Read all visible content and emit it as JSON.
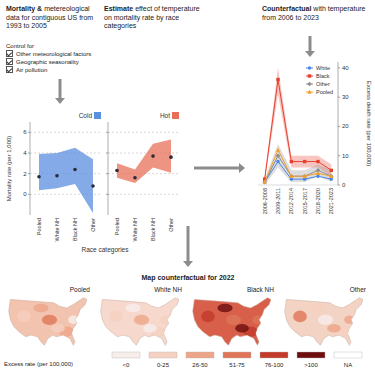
{
  "header": [
    {
      "bold": "Mortality &",
      "text": "metereological data for contiguous US from 1993 to 2005"
    },
    {
      "bold": "Estimate",
      "text": "effect of temperature on mortality rate by race categories"
    },
    {
      "bold": "Counterfactual",
      "text": "with temperature from 2006 to 2023"
    }
  ],
  "controls": {
    "title": "Control for",
    "items": [
      "Other meteorological factors",
      "Geographic seasonality",
      "Air pollution"
    ]
  },
  "chart_data": [
    {
      "type": "scatter",
      "title": "Cold",
      "color": "#5b8fe0",
      "marker": "circle",
      "categories": [
        "Pooled",
        "White NH",
        "Black NH",
        "Other"
      ],
      "values": [
        1.7,
        1.8,
        2.4,
        0.8
      ],
      "lower": [
        0.4,
        0.6,
        1.0,
        -1.8
      ],
      "upper": [
        3.9,
        4.0,
        4.5,
        3.4
      ],
      "ylim": [
        -2,
        7
      ],
      "yticks": [
        0,
        2,
        4,
        6
      ],
      "grid": true,
      "ylabel": "Mortality rate (per 1,000)",
      "xlabel": "Race categories"
    },
    {
      "type": "scatter",
      "title": "Hot",
      "color": "#e8705a",
      "marker": "circle",
      "categories": [
        "Pooled",
        "White NH",
        "Black NH",
        "Other"
      ],
      "values": [
        2.3,
        1.6,
        3.7,
        3.6
      ],
      "lower": [
        1.6,
        1.1,
        2.6,
        2.1
      ],
      "upper": [
        3.0,
        2.4,
        4.9,
        5.3
      ],
      "ylim": [
        -2,
        7
      ],
      "yticks": [
        0,
        2,
        4,
        6
      ],
      "grid": true,
      "tick_labels": "x"
    },
    {
      "type": "line",
      "categories": [
        "2006-2008",
        "2009-2011",
        "2012-2014",
        "2015-2017",
        "2018-2020",
        "2021-2023"
      ],
      "ylabel": "Excess death rate (per 100,000)",
      "ylim": [
        0,
        42
      ],
      "yticks": [
        0,
        10,
        20,
        30,
        40
      ],
      "legend": "top-right",
      "series": [
        {
          "name": "White",
          "color": "#4a86e8",
          "marker": "circle",
          "values": [
            1,
            8,
            2,
            2,
            3,
            2
          ]
        },
        {
          "name": "Black",
          "color": "#e8402f",
          "marker": "square",
          "values": [
            2,
            36,
            8,
            8,
            8,
            5
          ],
          "lower": [
            1,
            31,
            6,
            6,
            6,
            3
          ],
          "upper": [
            3,
            40,
            10,
            10,
            10,
            7
          ]
        },
        {
          "name": "Other",
          "color": "#8e8e8e",
          "marker": "diamond",
          "values": [
            1,
            10,
            3,
            3,
            5,
            3
          ],
          "lower": [
            0,
            6,
            1,
            1,
            3,
            1
          ],
          "upper": [
            2,
            14,
            5,
            5,
            7,
            5
          ]
        },
        {
          "name": "Pooled",
          "color": "#f0a030",
          "marker": "triangle",
          "values": [
            1,
            12,
            3,
            3,
            4,
            3
          ]
        }
      ]
    }
  ],
  "maps": {
    "title": "Map counterfactual for 2022",
    "panels": [
      {
        "label": "Pooled",
        "color": "#f2c4b0"
      },
      {
        "label": "White NH",
        "color": "#f6d9cc"
      },
      {
        "label": "Black NH",
        "color": "#d8604a"
      },
      {
        "label": "Other",
        "color": "#f3d3c3"
      }
    ],
    "legend": {
      "title": "Excess rate (per 100,000)",
      "items": [
        {
          "label": "<0",
          "color": "#f7eeec"
        },
        {
          "label": "0-25",
          "color": "#f6d0c0"
        },
        {
          "label": "26-50",
          "color": "#eda588"
        },
        {
          "label": "51-75",
          "color": "#df7558"
        },
        {
          "label": "76-100",
          "color": "#c23a2a"
        },
        {
          "label": ">100",
          "color": "#6e0f0f"
        },
        {
          "label": "NA",
          "color": "#ffffff"
        }
      ]
    }
  }
}
